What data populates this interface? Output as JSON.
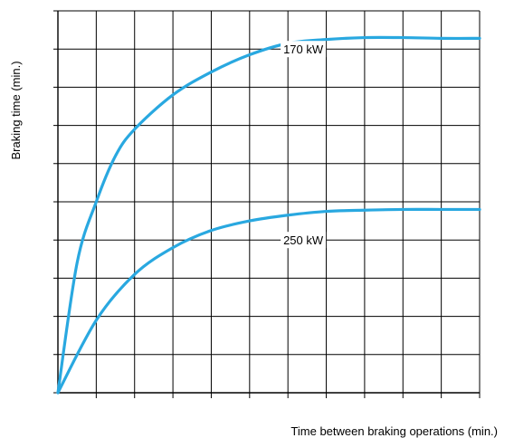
{
  "chart_data": {
    "type": "line",
    "xlabel": "Time between braking operations (min.)",
    "ylabel": "Braking time (min.)",
    "xlim": [
      0,
      11
    ],
    "ylim": [
      0,
      10
    ],
    "grid": true,
    "legend": "none",
    "line_color": "#29a8e0",
    "series": [
      {
        "name": "170 kW",
        "x": [
          0,
          0.5,
          1,
          1.5,
          2,
          3,
          4,
          5,
          6,
          7,
          8,
          9,
          10,
          11
        ],
        "values": [
          0,
          3.4,
          5.0,
          6.2,
          6.9,
          7.8,
          8.4,
          8.85,
          9.15,
          9.25,
          9.3,
          9.3,
          9.28,
          9.28
        ]
      },
      {
        "name": "250 kW",
        "x": [
          0,
          1,
          2,
          3,
          4,
          5,
          6,
          7,
          8,
          9,
          10,
          11
        ],
        "values": [
          0,
          1.9,
          3.1,
          3.8,
          4.25,
          4.5,
          4.65,
          4.75,
          4.78,
          4.8,
          4.8,
          4.8
        ]
      }
    ],
    "label_positions": [
      {
        "series": "170 kW",
        "x": 6.4
      },
      {
        "series": "250 kW",
        "x": 6.4
      }
    ]
  }
}
